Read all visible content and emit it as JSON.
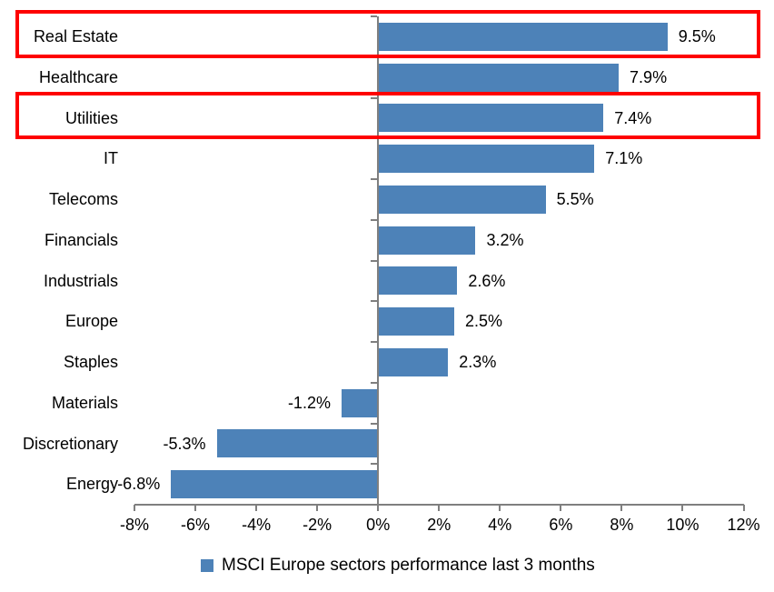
{
  "chart_data": {
    "type": "bar",
    "orientation": "horizontal",
    "categories": [
      "Real Estate",
      "Healthcare",
      "Utilities",
      "IT",
      "Telecoms",
      "Financials",
      "Industrials",
      "Europe",
      "Staples",
      "Materials",
      "Discretionary",
      "Energy"
    ],
    "values": [
      9.5,
      7.9,
      7.4,
      7.1,
      5.5,
      3.2,
      2.6,
      2.5,
      2.3,
      -1.2,
      -5.3,
      -6.8
    ],
    "value_labels": [
      "9.5%",
      "7.9%",
      "7.4%",
      "7.1%",
      "5.5%",
      "3.2%",
      "2.6%",
      "2.5%",
      "2.3%",
      "-1.2%",
      "-5.3%",
      "-6.8%"
    ],
    "x_tick_values": [
      -8,
      -6,
      -4,
      -2,
      0,
      2,
      4,
      6,
      8,
      10,
      12
    ],
    "x_tick_labels": [
      "-8%",
      "-6%",
      "-4%",
      "-2%",
      "0%",
      "2%",
      "4%",
      "6%",
      "8%",
      "10%",
      "12%"
    ],
    "xlim": [
      -8,
      12
    ],
    "grid": false,
    "highlighted_categories": [
      "Real Estate",
      "Utilities"
    ],
    "legend_position": "bottom-center",
    "colors": {
      "bar": "#4d82b8",
      "highlight_border": "#fe0000",
      "axis": "#7f7f7f",
      "text": "#000000",
      "background": "#ffffff"
    }
  },
  "legend": {
    "label": "MSCI Europe sectors performance last 3 months"
  }
}
